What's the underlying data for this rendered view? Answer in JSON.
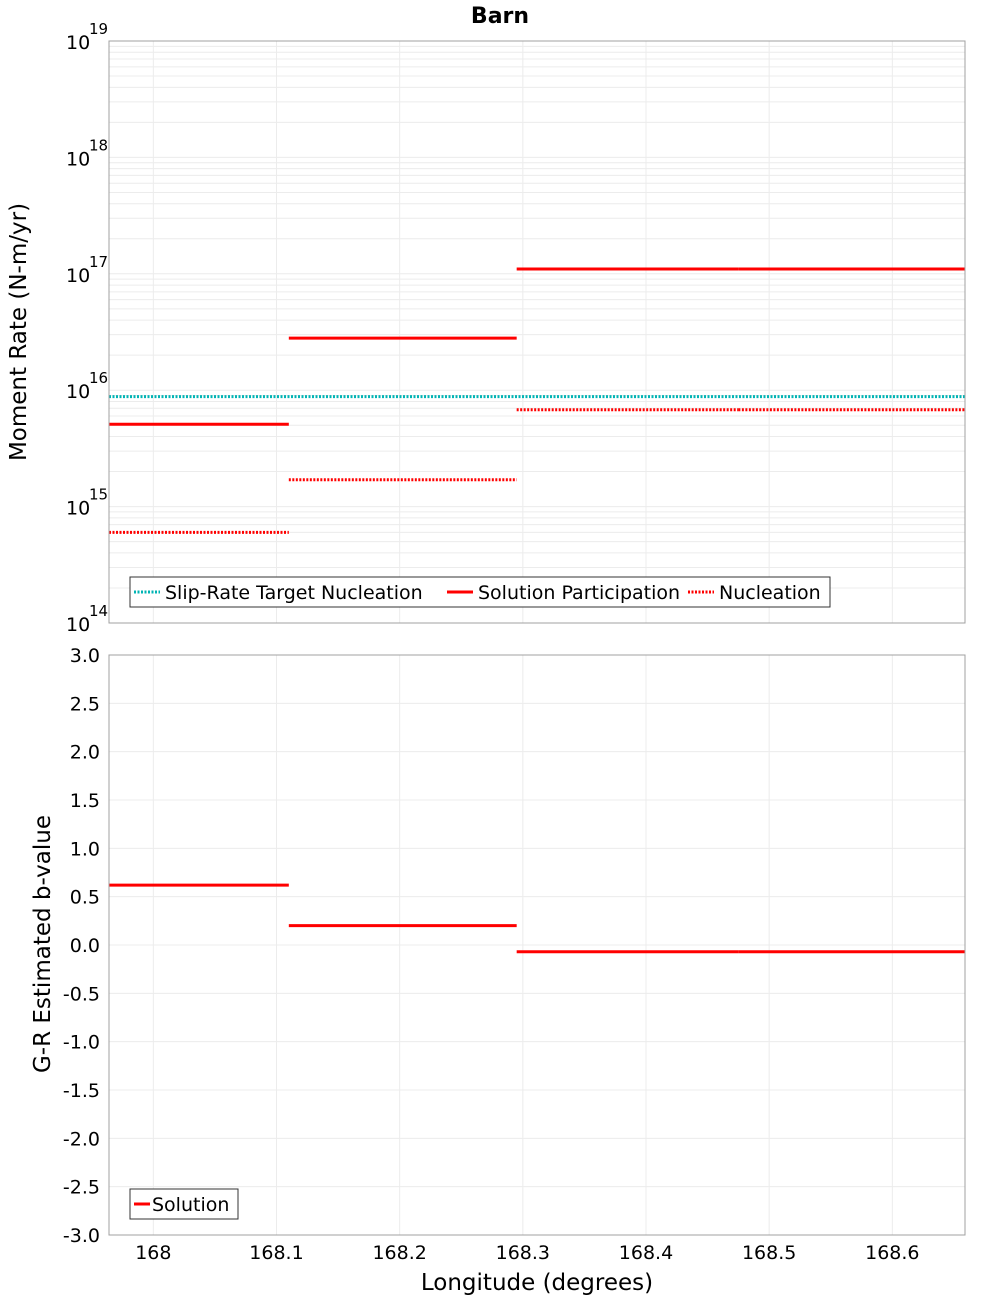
{
  "chart_data": [
    {
      "type": "line",
      "panel": "top",
      "title": "Barn",
      "xlabel": "",
      "ylabel": "Moment Rate (N-m/yr)",
      "yscale": "log",
      "ylim": [
        100000000000000.0,
        1e+19
      ],
      "xlim": [
        167.964,
        168.659
      ],
      "y_ticks": [
        {
          "base": "10",
          "exp": "14",
          "value": 100000000000000.0
        },
        {
          "base": "10",
          "exp": "15",
          "value": 1000000000000000.0
        },
        {
          "base": "10",
          "exp": "16",
          "value": 1e+16
        },
        {
          "base": "10",
          "exp": "17",
          "value": 1e+17
        },
        {
          "base": "10",
          "exp": "18",
          "value": 1e+18
        },
        {
          "base": "10",
          "exp": "19",
          "value": 1e+19
        }
      ],
      "legend": {
        "position": "bottom-left",
        "entries": [
          "Slip-Rate Target Nucleation",
          "Solution Participation",
          "Nucleation"
        ]
      },
      "series": [
        {
          "name": "Slip-Rate Target Nucleation",
          "color": "#00b4b4",
          "style": "dotted",
          "segments": [
            {
              "x0": 167.964,
              "x1": 168.659,
              "y": 8800000000000000.0
            }
          ]
        },
        {
          "name": "Solution Participation",
          "color": "#ff0000",
          "style": "solid",
          "segments": [
            {
              "x0": 167.964,
              "x1": 168.11,
              "y": 5100000000000000.0
            },
            {
              "x0": 168.11,
              "x1": 168.295,
              "y": 2.8e+16
            },
            {
              "x0": 168.295,
              "x1": 168.475,
              "y": 1.1e+17
            },
            {
              "x0": 168.475,
              "x1": 168.659,
              "y": 1.1e+17
            }
          ]
        },
        {
          "name": "Nucleation",
          "color": "#ff0000",
          "style": "dotted",
          "segments": [
            {
              "x0": 167.964,
              "x1": 168.11,
              "y": 600000000000000.0
            },
            {
              "x0": 168.11,
              "x1": 168.295,
              "y": 1700000000000000.0
            },
            {
              "x0": 168.295,
              "x1": 168.475,
              "y": 6800000000000000.0
            },
            {
              "x0": 168.475,
              "x1": 168.659,
              "y": 6800000000000000.0
            }
          ]
        }
      ]
    },
    {
      "type": "line",
      "panel": "bottom",
      "title": "",
      "xlabel": "Longitude (degrees)",
      "ylabel": "G-R Estimated b-value",
      "ylim": [
        -3.0,
        3.0
      ],
      "xlim": [
        167.964,
        168.659
      ],
      "x_ticks": [
        {
          "label": "168",
          "value": 168.0
        },
        {
          "label": "168.1",
          "value": 168.1
        },
        {
          "label": "168.2",
          "value": 168.2
        },
        {
          "label": "168.3",
          "value": 168.3
        },
        {
          "label": "168.4",
          "value": 168.4
        },
        {
          "label": "168.5",
          "value": 168.5
        },
        {
          "label": "168.6",
          "value": 168.6
        }
      ],
      "y_ticks": [
        {
          "label": "3.0",
          "value": 3.0
        },
        {
          "label": "2.5",
          "value": 2.5
        },
        {
          "label": "2.0",
          "value": 2.0
        },
        {
          "label": "1.5",
          "value": 1.5
        },
        {
          "label": "1.0",
          "value": 1.0
        },
        {
          "label": "0.5",
          "value": 0.5
        },
        {
          "label": "0.0",
          "value": 0.0
        },
        {
          "label": "-0.5",
          "value": -0.5
        },
        {
          "label": "-1.0",
          "value": -1.0
        },
        {
          "label": "-1.5",
          "value": -1.5
        },
        {
          "label": "-2.0",
          "value": -2.0
        },
        {
          "label": "-2.5",
          "value": -2.5
        },
        {
          "label": "-3.0",
          "value": -3.0
        }
      ],
      "legend": {
        "position": "bottom-left",
        "entries": [
          "Solution"
        ]
      },
      "series": [
        {
          "name": "Solution",
          "color": "#ff0000",
          "style": "solid",
          "segments": [
            {
              "x0": 167.964,
              "x1": 168.11,
              "y": 0.62
            },
            {
              "x0": 168.11,
              "x1": 168.295,
              "y": 0.2
            },
            {
              "x0": 168.295,
              "x1": 168.475,
              "y": -0.07
            },
            {
              "x0": 168.475,
              "x1": 168.659,
              "y": -0.07
            }
          ]
        }
      ]
    }
  ]
}
